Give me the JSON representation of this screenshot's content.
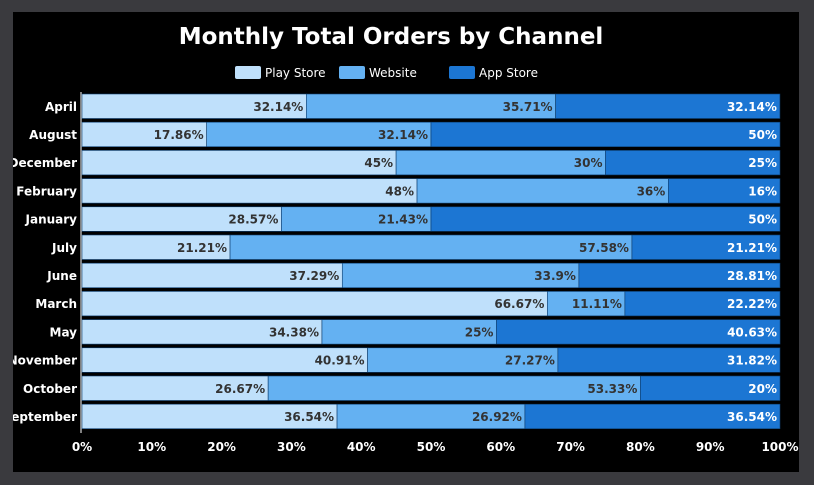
{
  "chart_data": {
    "type": "bar",
    "orientation": "horizontal",
    "stacked": true,
    "normalized": true,
    "title": "Monthly Total Orders by Channel",
    "xlabel": "",
    "ylabel": "",
    "xlim": [
      0,
      100
    ],
    "x_ticks": [
      "0%",
      "10%",
      "20%",
      "30%",
      "40%",
      "50%",
      "60%",
      "70%",
      "80%",
      "90%",
      "100%"
    ],
    "legend_position": "top-center",
    "categories": [
      "April",
      "August",
      "December",
      "February",
      "January",
      "July",
      "June",
      "March",
      "May",
      "November",
      "October",
      "September"
    ],
    "series": [
      {
        "name": "Play Store",
        "color": "#bfe0fb",
        "label_color": "#333333",
        "values": [
          32.14,
          17.86,
          45,
          48,
          28.57,
          21.21,
          37.29,
          66.67,
          34.38,
          40.91,
          26.67,
          36.54
        ],
        "labels": [
          "32.14%",
          "17.86%",
          "45%",
          "48%",
          "28.57%",
          "21.21%",
          "37.29%",
          "66.67%",
          "34.38%",
          "40.91%",
          "26.67%",
          "36.54%"
        ]
      },
      {
        "name": "Website",
        "color": "#64b1f2",
        "label_color": "#333333",
        "values": [
          35.71,
          32.14,
          30,
          36,
          21.43,
          57.58,
          33.9,
          11.11,
          25,
          27.27,
          53.33,
          26.92
        ],
        "labels": [
          "35.71%",
          "32.14%",
          "30%",
          "36%",
          "21.43%",
          "57.58%",
          "33.9%",
          "11.11%",
          "25%",
          "27.27%",
          "53.33%",
          "26.92%"
        ]
      },
      {
        "name": "App Store",
        "color": "#1c76d3",
        "label_color": "#ffffff",
        "values": [
          32.14,
          50,
          25,
          16,
          50,
          21.21,
          28.81,
          22.22,
          40.63,
          31.82,
          20,
          36.54
        ],
        "labels": [
          "32.14%",
          "50%",
          "25%",
          "16%",
          "50%",
          "21.21%",
          "28.81%",
          "22.22%",
          "40.63%",
          "31.82%",
          "20%",
          "36.54%"
        ]
      }
    ]
  }
}
